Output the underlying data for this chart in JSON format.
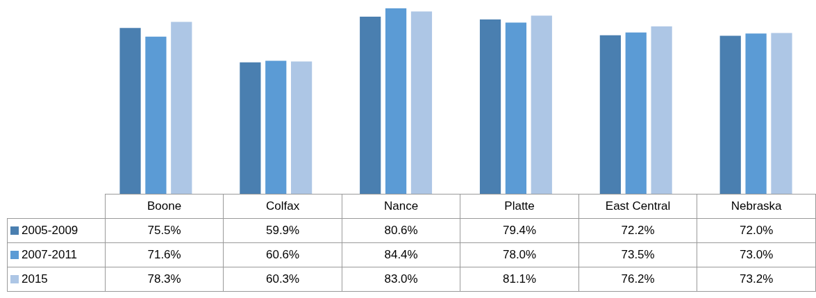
{
  "chart_data": {
    "type": "bar",
    "categories": [
      "Boone",
      "Colfax",
      "Nance",
      "Platte",
      "East Central",
      "Nebraska"
    ],
    "series": [
      {
        "name": "2005-2009",
        "color": "#4a7fb0",
        "values": [
          75.5,
          59.9,
          80.6,
          79.4,
          72.2,
          72.0
        ],
        "value_labels": [
          "75.5%",
          "59.9%",
          "80.6%",
          "79.4%",
          "72.2%",
          "72.0%"
        ]
      },
      {
        "name": "2007-2011",
        "color": "#5b9bd5",
        "values": [
          71.6,
          60.6,
          84.4,
          78.0,
          73.5,
          73.0
        ],
        "value_labels": [
          "71.6%",
          "60.6%",
          "84.4%",
          "78.0%",
          "73.5%",
          "73.0%"
        ]
      },
      {
        "name": "2015",
        "color": "#adc6e5",
        "values": [
          78.3,
          60.3,
          83.0,
          81.1,
          76.2,
          73.2
        ],
        "value_labels": [
          "78.3%",
          "60.3%",
          "83.0%",
          "81.1%",
          "76.2%",
          "73.2%"
        ]
      }
    ],
    "legend": "bottom"
  }
}
